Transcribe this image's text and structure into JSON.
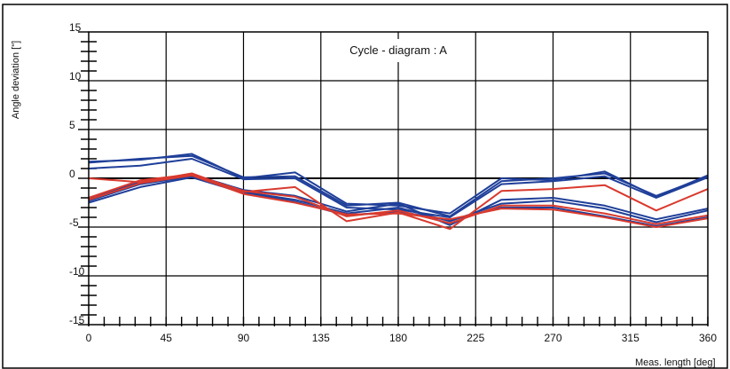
{
  "chart_data": {
    "type": "line",
    "title": "Cycle - diagram : A",
    "xlabel": "Meas. length  [deg]",
    "ylabel": "Angle deviation [\"]",
    "xlim": [
      0,
      360
    ],
    "ylim": [
      -15,
      15
    ],
    "xticks": [
      0,
      45,
      90,
      135,
      180,
      225,
      270,
      315,
      360
    ],
    "yticks": [
      15,
      10,
      5,
      0,
      -5,
      -10,
      -15
    ],
    "grid": true,
    "x": [
      0,
      30,
      60,
      90,
      120,
      150,
      180,
      210,
      240,
      270,
      300,
      330,
      360
    ],
    "series": [
      {
        "color": "#1f3f99",
        "values": [
          1.7,
          1.9,
          2.5,
          0.0,
          0.6,
          -2.6,
          -2.8,
          -3.6,
          0.0,
          -0.2,
          0.7,
          -1.9,
          0.3
        ]
      },
      {
        "color": "#1f3f99",
        "values": [
          1.6,
          2.0,
          2.3,
          0.1,
          0.2,
          -2.8,
          -2.5,
          -3.9,
          -0.3,
          0.0,
          0.5,
          -1.8,
          0.2
        ]
      },
      {
        "color": "#1f3f99",
        "values": [
          1.0,
          1.3,
          2.0,
          -0.1,
          0.0,
          -3.0,
          -3.2,
          -4.0,
          -0.6,
          -0.3,
          0.2,
          -2.0,
          0.1
        ]
      },
      {
        "color": "#1f3f99",
        "values": [
          -2.0,
          -0.4,
          0.4,
          -1.2,
          -1.8,
          -3.4,
          -2.6,
          -4.8,
          -2.2,
          -2.0,
          -2.8,
          -4.2,
          -3.1
        ]
      },
      {
        "color": "#1f3f99",
        "values": [
          -2.3,
          -0.6,
          0.2,
          -1.4,
          -2.2,
          -3.6,
          -3.0,
          -4.4,
          -2.6,
          -2.3,
          -3.1,
          -4.5,
          -3.3
        ]
      },
      {
        "color": "#1f3f99",
        "values": [
          -2.5,
          -0.9,
          0.1,
          -1.5,
          -2.4,
          -3.8,
          -3.4,
          -4.3,
          -3.0,
          -3.0,
          -3.9,
          -4.9,
          -4.0
        ]
      },
      {
        "color": "#d93a2e",
        "values": [
          0.0,
          -0.4,
          0.5,
          -1.4,
          -0.9,
          -4.4,
          -3.5,
          -5.2,
          -1.3,
          -1.1,
          -0.7,
          -3.3,
          -1.1
        ]
      },
      {
        "color": "#d93a2e",
        "values": [
          -2.0,
          -0.2,
          0.4,
          -1.3,
          -1.9,
          -3.9,
          -3.3,
          -4.6,
          -2.8,
          -2.8,
          -3.6,
          -4.7,
          -3.8
        ]
      },
      {
        "color": "#d93a2e",
        "values": [
          -2.2,
          -0.5,
          0.3,
          -1.6,
          -2.5,
          -3.7,
          -3.6,
          -4.2,
          -3.1,
          -3.2,
          -4.0,
          -5.0,
          -4.1
        ]
      }
    ]
  }
}
